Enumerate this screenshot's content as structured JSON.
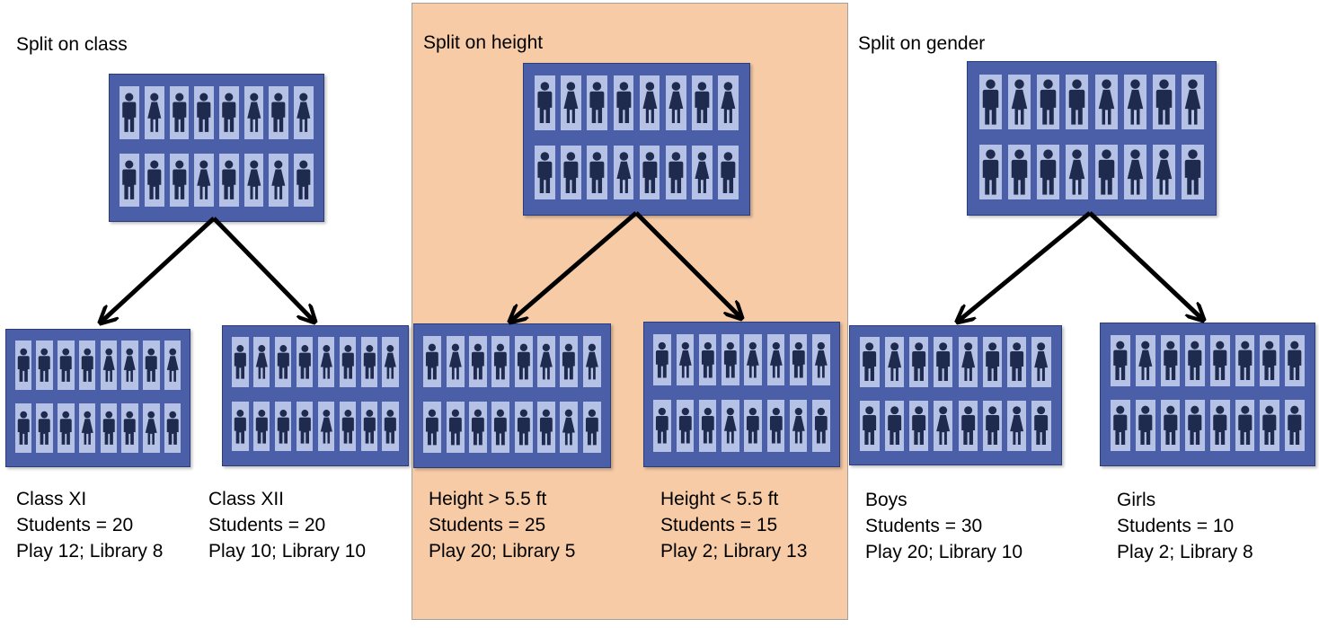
{
  "colors": {
    "highlight": "#f6cba6",
    "group_fill": "#4a5fa8",
    "card_fill": "#b6c1e6",
    "person": "#1f2a4f"
  },
  "icons": {
    "boy": "male-person-icon",
    "girl": "female-person-icon"
  },
  "panels": [
    {
      "title": "Split on class",
      "root": {
        "rows": [
          [
            "b",
            "g",
            "b",
            "b",
            "b",
            "g",
            "b",
            "g"
          ],
          [
            "b",
            "b",
            "b",
            "g",
            "b",
            "g",
            "g",
            "b"
          ]
        ]
      },
      "children": [
        {
          "label": "Class XI",
          "students": "Students = 20",
          "split": "Play 12; Library 8",
          "rows": [
            [
              "b",
              "b",
              "b",
              "b",
              "g",
              "g",
              "b",
              "g"
            ],
            [
              "b",
              "b",
              "b",
              "g",
              "b",
              "b",
              "g",
              "b"
            ]
          ]
        },
        {
          "label": "Class XII",
          "students": "Students = 20",
          "split": "Play 10; Library 10",
          "rows": [
            [
              "b",
              "g",
              "b",
              "b",
              "g",
              "b",
              "b",
              "g"
            ],
            [
              "b",
              "b",
              "b",
              "b",
              "g",
              "b",
              "b",
              "b"
            ]
          ]
        }
      ]
    },
    {
      "title": "Split on height",
      "root": {
        "rows": [
          [
            "b",
            "g",
            "b",
            "b",
            "g",
            "g",
            "b",
            "g"
          ],
          [
            "b",
            "b",
            "b",
            "g",
            "b",
            "b",
            "g",
            "b"
          ]
        ]
      },
      "children": [
        {
          "label": "Height > 5.5 ft",
          "students": "Students = 25",
          "split": "Play 20; Library 5",
          "rows": [
            [
              "b",
              "g",
              "b",
              "b",
              "b",
              "g",
              "b",
              "g"
            ],
            [
              "b",
              "b",
              "b",
              "b",
              "b",
              "b",
              "g",
              "b"
            ]
          ]
        },
        {
          "label": "Height < 5.5 ft",
          "students": "Students = 15",
          "split": "Play 2; Library 13",
          "rows": [
            [
              "b",
              "g",
              "b",
              "b",
              "g",
              "g",
              "b",
              "g"
            ],
            [
              "b",
              "b",
              "b",
              "g",
              "b",
              "b",
              "g",
              "b"
            ]
          ]
        }
      ]
    },
    {
      "title": "Split on gender",
      "root": {
        "rows": [
          [
            "b",
            "g",
            "b",
            "b",
            "g",
            "g",
            "b",
            "g"
          ],
          [
            "b",
            "b",
            "b",
            "g",
            "b",
            "g",
            "g",
            "b"
          ]
        ]
      },
      "children": [
        {
          "label": "Boys",
          "students": "Students = 30",
          "split": "Play 20; Library 10",
          "rows": [
            [
              "b",
              "g",
              "b",
              "b",
              "g",
              "b",
              "b",
              "g"
            ],
            [
              "b",
              "b",
              "b",
              "g",
              "b",
              "b",
              "g",
              "b"
            ]
          ]
        },
        {
          "label": "Girls",
          "students": "Students = 10",
          "split": "Play 2; Library 8",
          "rows": [
            [
              "b",
              "g",
              "b",
              "b",
              "b",
              "b",
              "b",
              "b"
            ],
            [
              "b",
              "b",
              "b",
              "b",
              "b",
              "b",
              "b",
              "b"
            ]
          ]
        }
      ]
    }
  ]
}
